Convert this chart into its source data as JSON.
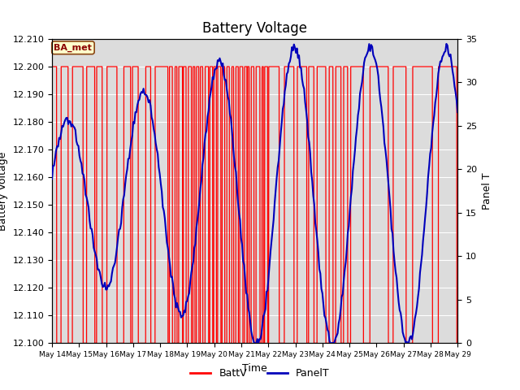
{
  "title": "Battery Voltage",
  "xlabel": "Time",
  "ylabel_left": "Battery Voltage",
  "ylabel_right": "Panel T",
  "ylim_left": [
    12.1,
    12.21
  ],
  "ylim_right": [
    0,
    35
  ],
  "yticks_left": [
    12.1,
    12.11,
    12.12,
    12.13,
    12.14,
    12.15,
    12.16,
    12.17,
    12.18,
    12.19,
    12.2,
    12.21
  ],
  "yticks_right": [
    0,
    5,
    10,
    15,
    20,
    25,
    30,
    35
  ],
  "xtick_labels": [
    "May 14",
    "May 15",
    "May 16",
    "May 17",
    "May 18",
    "May 19",
    "May 20",
    "May 21",
    "May 22",
    "May 23",
    "May 24",
    "May 25",
    "May 26",
    "May 27",
    "May 28",
    "May 29"
  ],
  "batt_color": "#FF0000",
  "panel_color": "#0000BB",
  "bg_color": "#DCDCDC",
  "annotation_text": "BA_met",
  "annotation_bg": "#FFFFCC",
  "annotation_border": "#8B4513",
  "legend_batt": "BattV",
  "legend_panel": "PanelT",
  "title_fontsize": 12,
  "axis_label_fontsize": 9,
  "tick_fontsize": 8
}
